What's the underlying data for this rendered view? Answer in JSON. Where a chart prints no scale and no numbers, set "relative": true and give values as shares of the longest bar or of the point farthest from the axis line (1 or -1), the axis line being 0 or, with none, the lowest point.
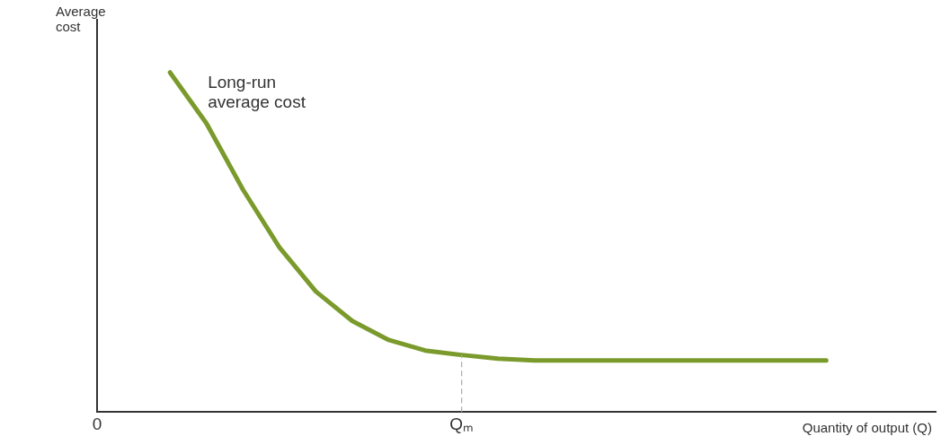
{
  "chart_data": {
    "type": "line",
    "relative": true,
    "xlabel": "Quantity of output (Q)",
    "ylabel": "Average cost",
    "categories": [
      "0",
      null,
      null,
      null,
      null,
      null,
      null,
      null,
      null,
      null,
      "Qₘ",
      null,
      null,
      null,
      null,
      null,
      null,
      null,
      null,
      null,
      null,
      null,
      null,
      null
    ],
    "grid": false,
    "legend": false,
    "marker": "none",
    "line_style": "solid",
    "ref_lines": [
      {
        "axis": "x",
        "value": "Qₘ",
        "color": "#aaaaaa",
        "line_style": "dashed"
      }
    ],
    "series": [
      {
        "name": "Long-run average cost",
        "color": "#7a9a2c",
        "values": [
          null,
          null,
          1.0,
          0.85,
          0.655,
          0.485,
          0.355,
          0.268,
          0.212,
          0.181,
          0.168,
          0.157,
          0.152,
          0.152,
          0.152,
          0.152,
          0.152,
          0.152,
          0.152,
          0.152,
          0.152,
          null,
          null,
          null
        ]
      }
    ]
  }
}
